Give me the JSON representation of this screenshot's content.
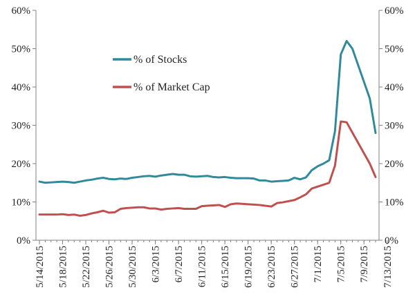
{
  "chart_data": {
    "type": "line",
    "title": "",
    "xlabel": "",
    "ylabel": "",
    "ylim": [
      0,
      60
    ],
    "y_ticks": [
      0,
      10,
      20,
      30,
      40,
      50,
      60
    ],
    "y_tick_labels": [
      "0%",
      "10%",
      "20%",
      "30%",
      "40%",
      "50%",
      "60%"
    ],
    "secondary_y_axis": true,
    "x_tick_labels": [
      "5/14/2015",
      "5/18/2015",
      "5/22/2015",
      "5/26/2015",
      "5/30/2015",
      "6/3/2015",
      "6/7/2015",
      "6/11/2015",
      "6/15/2015",
      "6/19/2015",
      "6/23/2015",
      "6/27/2015",
      "7/1/2015",
      "7/5/2015",
      "7/9/2015",
      "7/13/2015"
    ],
    "x_tick_every_days": 4,
    "legend_placement": "upper-center",
    "series": [
      {
        "name": "% of Stocks",
        "color": "#2f8a9c",
        "points": [
          [
            0,
            15.3
          ],
          [
            1,
            15.0
          ],
          [
            2,
            15.1
          ],
          [
            3,
            15.2
          ],
          [
            4,
            15.3
          ],
          [
            5,
            15.2
          ],
          [
            6,
            15.0
          ],
          [
            7,
            15.3
          ],
          [
            8,
            15.6
          ],
          [
            9,
            15.8
          ],
          [
            10,
            16.1
          ],
          [
            11,
            16.3
          ],
          [
            12,
            16.0
          ],
          [
            13,
            15.9
          ],
          [
            14,
            16.1
          ],
          [
            15,
            16.0
          ],
          [
            16,
            16.3
          ],
          [
            17,
            16.5
          ],
          [
            18,
            16.7
          ],
          [
            19,
            16.8
          ],
          [
            20,
            16.6
          ],
          [
            21,
            16.9
          ],
          [
            22,
            17.1
          ],
          [
            23,
            17.3
          ],
          [
            24,
            17.1
          ],
          [
            25,
            17.1
          ],
          [
            26,
            16.7
          ],
          [
            27,
            16.6
          ],
          [
            28,
            16.7
          ],
          [
            29,
            16.8
          ],
          [
            30,
            16.5
          ],
          [
            31,
            16.4
          ],
          [
            32,
            16.5
          ],
          [
            33,
            16.3
          ],
          [
            34,
            16.2
          ],
          [
            35,
            16.2
          ],
          [
            36,
            16.2
          ],
          [
            37,
            16.1
          ],
          [
            38,
            15.6
          ],
          [
            39,
            15.6
          ],
          [
            40,
            15.3
          ],
          [
            41,
            15.4
          ],
          [
            42,
            15.5
          ],
          [
            43,
            15.6
          ],
          [
            44,
            16.3
          ],
          [
            45,
            15.9
          ],
          [
            46,
            16.4
          ],
          [
            47,
            18.3
          ],
          [
            48,
            19.3
          ],
          [
            49,
            20.0
          ],
          [
            50,
            20.9
          ],
          [
            51,
            28.5
          ],
          [
            52,
            48.5
          ],
          [
            53,
            52.0
          ],
          [
            54,
            50.0
          ],
          [
            57,
            37.0
          ],
          [
            58,
            28.0
          ]
        ]
      },
      {
        "name": "% of Market Cap",
        "color": "#c0504d",
        "points": [
          [
            0,
            6.7
          ],
          [
            1,
            6.7
          ],
          [
            2,
            6.7
          ],
          [
            3,
            6.7
          ],
          [
            4,
            6.8
          ],
          [
            5,
            6.6
          ],
          [
            6,
            6.7
          ],
          [
            7,
            6.4
          ],
          [
            8,
            6.6
          ],
          [
            9,
            7.0
          ],
          [
            10,
            7.3
          ],
          [
            11,
            7.7
          ],
          [
            12,
            7.2
          ],
          [
            13,
            7.3
          ],
          [
            14,
            8.2
          ],
          [
            15,
            8.4
          ],
          [
            16,
            8.5
          ],
          [
            17,
            8.6
          ],
          [
            18,
            8.6
          ],
          [
            19,
            8.3
          ],
          [
            20,
            8.3
          ],
          [
            21,
            8.0
          ],
          [
            22,
            8.2
          ],
          [
            23,
            8.3
          ],
          [
            24,
            8.4
          ],
          [
            25,
            8.2
          ],
          [
            26,
            8.2
          ],
          [
            27,
            8.2
          ],
          [
            28,
            8.9
          ],
          [
            29,
            9.0
          ],
          [
            30,
            9.1
          ],
          [
            31,
            9.2
          ],
          [
            32,
            8.7
          ],
          [
            33,
            9.4
          ],
          [
            34,
            9.6
          ],
          [
            35,
            9.5
          ],
          [
            36,
            9.4
          ],
          [
            37,
            9.3
          ],
          [
            38,
            9.2
          ],
          [
            39,
            9.0
          ],
          [
            40,
            8.8
          ],
          [
            41,
            9.7
          ],
          [
            42,
            9.9
          ],
          [
            43,
            10.2
          ],
          [
            44,
            10.5
          ],
          [
            45,
            11.2
          ],
          [
            46,
            12.0
          ],
          [
            47,
            13.5
          ],
          [
            48,
            14.0
          ],
          [
            49,
            14.5
          ],
          [
            50,
            15.0
          ],
          [
            51,
            19.5
          ],
          [
            52,
            31.0
          ],
          [
            53,
            30.8
          ],
          [
            57,
            20.0
          ],
          [
            58,
            16.5
          ]
        ]
      }
    ]
  }
}
